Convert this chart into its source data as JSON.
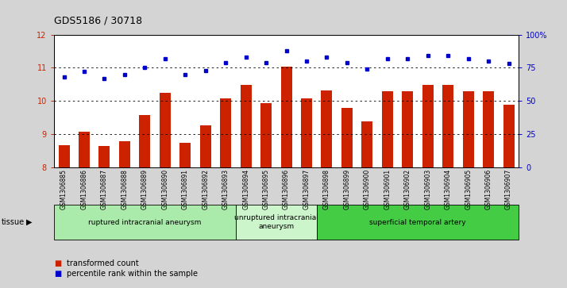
{
  "title": "GDS5186 / 30718",
  "samples": [
    "GSM1306885",
    "GSM1306886",
    "GSM1306887",
    "GSM1306888",
    "GSM1306889",
    "GSM1306890",
    "GSM1306891",
    "GSM1306892",
    "GSM1306893",
    "GSM1306894",
    "GSM1306895",
    "GSM1306896",
    "GSM1306897",
    "GSM1306898",
    "GSM1306899",
    "GSM1306900",
    "GSM1306901",
    "GSM1306902",
    "GSM1306903",
    "GSM1306904",
    "GSM1306905",
    "GSM1306906",
    "GSM1306907"
  ],
  "bar_values": [
    8.65,
    9.07,
    8.63,
    8.78,
    9.57,
    10.25,
    8.73,
    9.25,
    10.07,
    10.47,
    9.93,
    11.02,
    10.07,
    10.32,
    9.78,
    9.38,
    10.28,
    10.28,
    10.47,
    10.47,
    10.28,
    10.28,
    9.87
  ],
  "dot_values": [
    68,
    72,
    67,
    70,
    75,
    82,
    70,
    73,
    79,
    83,
    79,
    88,
    80,
    83,
    79,
    74,
    82,
    82,
    84,
    84,
    82,
    80,
    78
  ],
  "ylim_left": [
    8,
    12
  ],
  "ylim_right": [
    0,
    100
  ],
  "yticks_left": [
    8,
    9,
    10,
    11,
    12
  ],
  "yticks_right": [
    0,
    25,
    50,
    75,
    100
  ],
  "ytick_labels_right": [
    "0",
    "25",
    "50",
    "75",
    "100%"
  ],
  "bar_color": "#cc2200",
  "dot_color": "#0000cc",
  "background_color": "#d4d4d4",
  "plot_bg": "#ffffff",
  "groups": [
    {
      "label": "ruptured intracranial aneurysm",
      "start": 0,
      "end": 9,
      "color": "#aaeaaa"
    },
    {
      "label": "unruptured intracranial\naneurysm",
      "start": 9,
      "end": 13,
      "color": "#ccf5cc"
    },
    {
      "label": "superficial temporal artery",
      "start": 13,
      "end": 23,
      "color": "#44cc44"
    }
  ],
  "legend_bar_label": "transformed count",
  "legend_dot_label": "percentile rank within the sample",
  "tissue_label": "tissue"
}
